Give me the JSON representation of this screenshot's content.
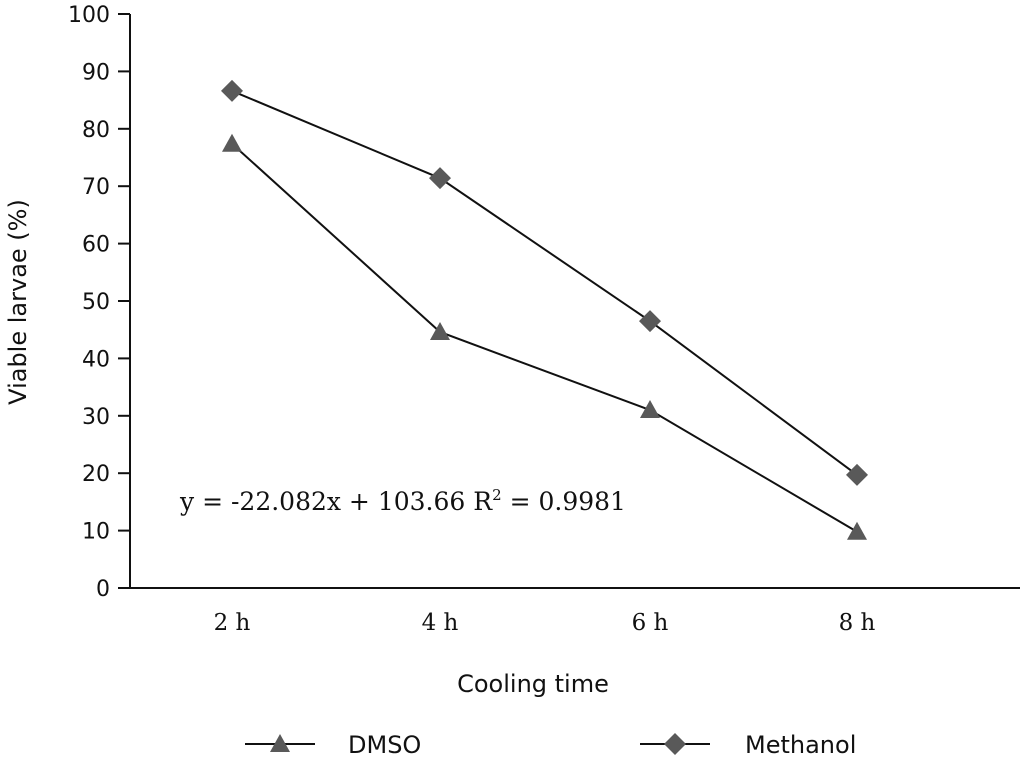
{
  "chart_data": {
    "type": "line",
    "title": "",
    "xlabel": "Cooling time",
    "ylabel": "Viable larvae (%)",
    "categories": [
      "2 h",
      "4 h",
      "6 h",
      "8 h"
    ],
    "ylim": [
      0,
      100
    ],
    "yticks": [
      "0",
      "10",
      "20",
      "30",
      "40",
      "50",
      "60",
      "70",
      "80",
      "90",
      "100"
    ],
    "grid": false,
    "legend_position": "bottom",
    "series": [
      {
        "name": "DMSO",
        "marker": "triangle",
        "color": "#595959",
        "values": [
          77.4,
          44.6,
          31.0,
          9.8
        ]
      },
      {
        "name": "Methanol",
        "marker": "diamond",
        "color": "#595959",
        "values": [
          86.6,
          71.4,
          46.5,
          19.7
        ]
      }
    ],
    "annotation": {
      "main": "y = -22.082x + 103.66  R",
      "sup": "2",
      "tail": " = 0.9981"
    }
  }
}
